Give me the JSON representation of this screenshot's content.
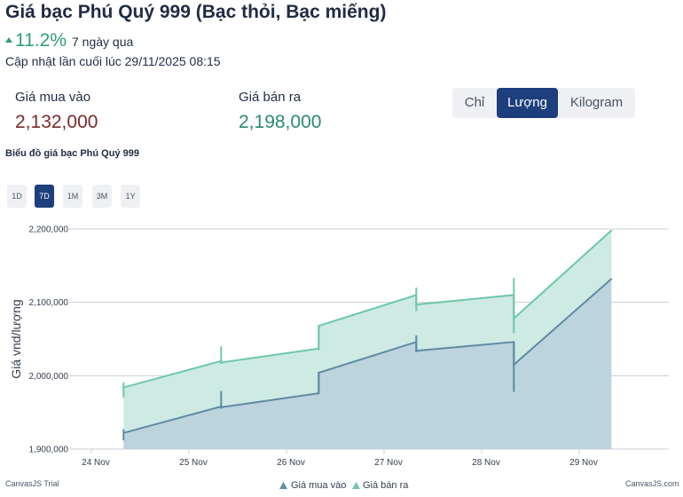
{
  "header": {
    "title": "Giá bạc Phú Quý 999 (Bạc thỏi, Bạc miếng)",
    "change_pct": "11.2%",
    "change_period": "7 ngày qua",
    "updated": "Cập nhật lần cuối lúc 29/11/2025 08:15"
  },
  "prices": {
    "buy_label": "Giá mua vào",
    "buy_value": "2,132,000",
    "sell_label": "Giá bán ra",
    "sell_value": "2,198,000"
  },
  "units": {
    "options": [
      "Chỉ",
      "Lượng",
      "Kilogram"
    ],
    "selected": "Lượng"
  },
  "chart_title": "Biểu đồ giá bạc Phú Quý 999",
  "ranges": {
    "options": [
      "1D",
      "7D",
      "1M",
      "3M",
      "1Y"
    ],
    "selected": "7D"
  },
  "footer": {
    "left": "CanvasJS Trial",
    "right": "CanvasJS.com"
  },
  "colors": {
    "buy_line": "#5f8aa3",
    "buy_fill": "#bcd4dd",
    "sell_line": "#6dc7ad",
    "sell_fill": "#cdeae3",
    "accent": "#1e3f7d"
  },
  "chart_data": {
    "type": "area",
    "title": "Biểu đồ giá bạc Phú Quý 999",
    "xlabel": "",
    "ylabel": "Giá vnd/lượng",
    "ylim": [
      1900000,
      2200000
    ],
    "yticks": [
      1900000,
      2000000,
      2100000,
      2200000
    ],
    "ytick_labels": [
      "1,900,000",
      "2,000,000",
      "2,100,000",
      "2,200,000"
    ],
    "xlim": [
      0,
      5.9
    ],
    "xticks": [
      0,
      1,
      2,
      3,
      4,
      5
    ],
    "xtick_labels": [
      "24 Nov",
      "25 Nov",
      "26 Nov",
      "27 Nov",
      "28 Nov",
      "29 Nov"
    ],
    "legend": [
      "Giá mua vào",
      "Giá bán ra"
    ],
    "legend_position": "bottom-center",
    "series": [
      {
        "name": "Giá mua vào",
        "x": [
          0.33,
          1.33,
          1.33,
          2.33,
          2.33,
          3.33,
          3.33,
          4.33,
          4.33,
          5.33
        ],
        "values": [
          1922000,
          1958000,
          1957000,
          1976000,
          2004000,
          2046000,
          2034000,
          2046000,
          2015000,
          2132000
        ]
      },
      {
        "name": "Giá bán ra",
        "x": [
          0.33,
          1.33,
          1.33,
          2.33,
          2.33,
          3.33,
          3.33,
          4.33,
          4.33,
          5.33
        ],
        "values": [
          1984000,
          2020000,
          2018000,
          2037000,
          2068000,
          2110000,
          2097000,
          2110000,
          2078000,
          2198000
        ]
      }
    ],
    "candles": [
      {
        "series": "Giá mua vào",
        "x": 0.33,
        "low": 1912000,
        "high": 1927000
      },
      {
        "series": "Giá mua vào",
        "x": 1.33,
        "low": 1955000,
        "high": 1979000
      },
      {
        "series": "Giá mua vào",
        "x": 2.33,
        "low": 1975000,
        "high": 2005000
      },
      {
        "series": "Giá mua vào",
        "x": 3.33,
        "low": 2032000,
        "high": 2055000
      },
      {
        "series": "Giá mua vào",
        "x": 4.33,
        "low": 1978000,
        "high": 2047000
      },
      {
        "series": "Giá bán ra",
        "x": 0.33,
        "low": 1970000,
        "high": 1991000
      },
      {
        "series": "Giá bán ra",
        "x": 1.33,
        "low": 2016000,
        "high": 2040000
      },
      {
        "series": "Giá bán ra",
        "x": 2.33,
        "low": 2035000,
        "high": 2068000
      },
      {
        "series": "Giá bán ra",
        "x": 3.33,
        "low": 2088000,
        "high": 2120000
      },
      {
        "series": "Giá bán ra",
        "x": 4.33,
        "low": 2058000,
        "high": 2133000
      }
    ]
  }
}
